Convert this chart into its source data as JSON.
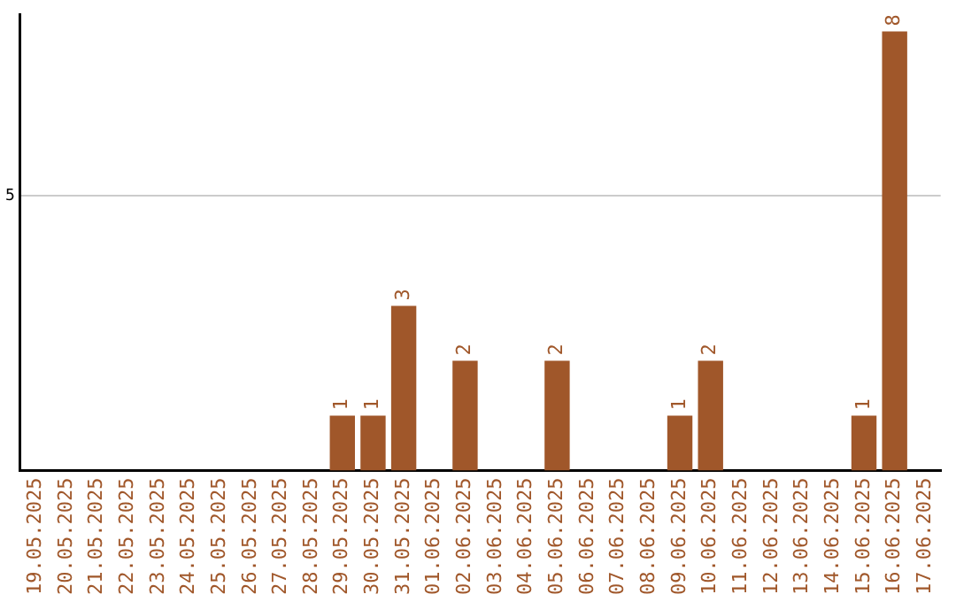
{
  "chart_data": {
    "type": "bar",
    "categories": [
      "19.05.2025",
      "20.05.2025",
      "21.05.2025",
      "22.05.2025",
      "23.05.2025",
      "24.05.2025",
      "25.05.2025",
      "26.05.2025",
      "27.05.2025",
      "28.05.2025",
      "29.05.2025",
      "30.05.2025",
      "31.05.2025",
      "01.06.2025",
      "02.06.2025",
      "03.06.2025",
      "04.06.2025",
      "05.06.2025",
      "06.06.2025",
      "07.06.2025",
      "08.06.2025",
      "09.06.2025",
      "10.06.2025",
      "11.06.2025",
      "12.06.2025",
      "13.06.2025",
      "14.06.2025",
      "15.06.2025",
      "16.06.2025",
      "17.06.2025"
    ],
    "values": [
      0,
      0,
      0,
      0,
      0,
      0,
      0,
      0,
      0,
      0,
      1,
      1,
      3,
      0,
      2,
      0,
      0,
      2,
      0,
      0,
      0,
      1,
      2,
      0,
      0,
      0,
      0,
      1,
      8,
      0
    ],
    "value_labels": [
      null,
      null,
      null,
      null,
      null,
      null,
      null,
      null,
      null,
      null,
      "1",
      "1",
      "3",
      null,
      "2",
      null,
      null,
      "2",
      null,
      null,
      null,
      "1",
      "2",
      null,
      null,
      null,
      null,
      "1",
      "8",
      null
    ],
    "color": "#a0572a",
    "ylim": [
      0,
      8.3
    ],
    "yticks": [
      5
    ],
    "grid": "y",
    "legend": false
  }
}
